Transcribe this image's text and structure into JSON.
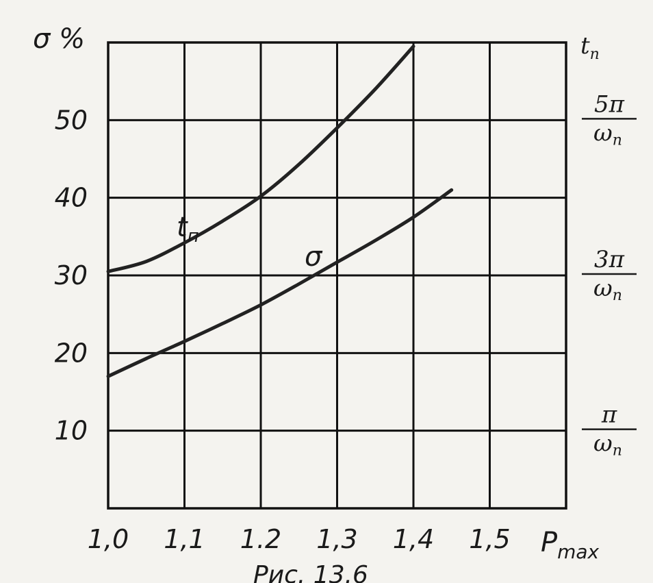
{
  "chart_data": {
    "type": "line",
    "x": [
      1.0,
      1.1,
      1.2,
      1.3,
      1.4,
      1.45
    ],
    "xlim": [
      1.0,
      1.6
    ],
    "ylim": [
      0,
      60
    ],
    "xlabel": "P",
    "xlabel_sub": "max",
    "ylabel": "σ %",
    "x_ticks": [
      "1,0",
      "1,1",
      "1.2",
      "1,3",
      "1,4",
      "1,5"
    ],
    "y_ticks": [
      "10",
      "20",
      "30",
      "40",
      "50"
    ],
    "grid": true,
    "series": [
      {
        "name": "t",
        "name_sub": "п",
        "x": [
          1.0,
          1.05,
          1.1,
          1.15,
          1.2,
          1.25,
          1.3,
          1.35,
          1.4
        ],
        "values": [
          30.5,
          31.8,
          34.2,
          37.0,
          40.2,
          44.3,
          49.0,
          54.0,
          59.5
        ]
      },
      {
        "name": "σ",
        "x": [
          1.0,
          1.05,
          1.1,
          1.15,
          1.2,
          1.25,
          1.3,
          1.35,
          1.4,
          1.45
        ],
        "values": [
          17.0,
          19.3,
          21.5,
          23.8,
          26.2,
          28.9,
          31.7,
          34.5,
          37.5,
          41.0
        ]
      }
    ],
    "right_axis": {
      "title": "t",
      "title_sub": "п",
      "labels": [
        {
          "value": 50,
          "num": "5π",
          "den": "ω",
          "den_sub": "п"
        },
        {
          "value": 30,
          "num": "3π",
          "den": "ω",
          "den_sub": "п"
        },
        {
          "value": 10,
          "num": "π",
          "den": "ω",
          "den_sub": "п"
        }
      ]
    },
    "caption": "Рис. 13.6"
  }
}
